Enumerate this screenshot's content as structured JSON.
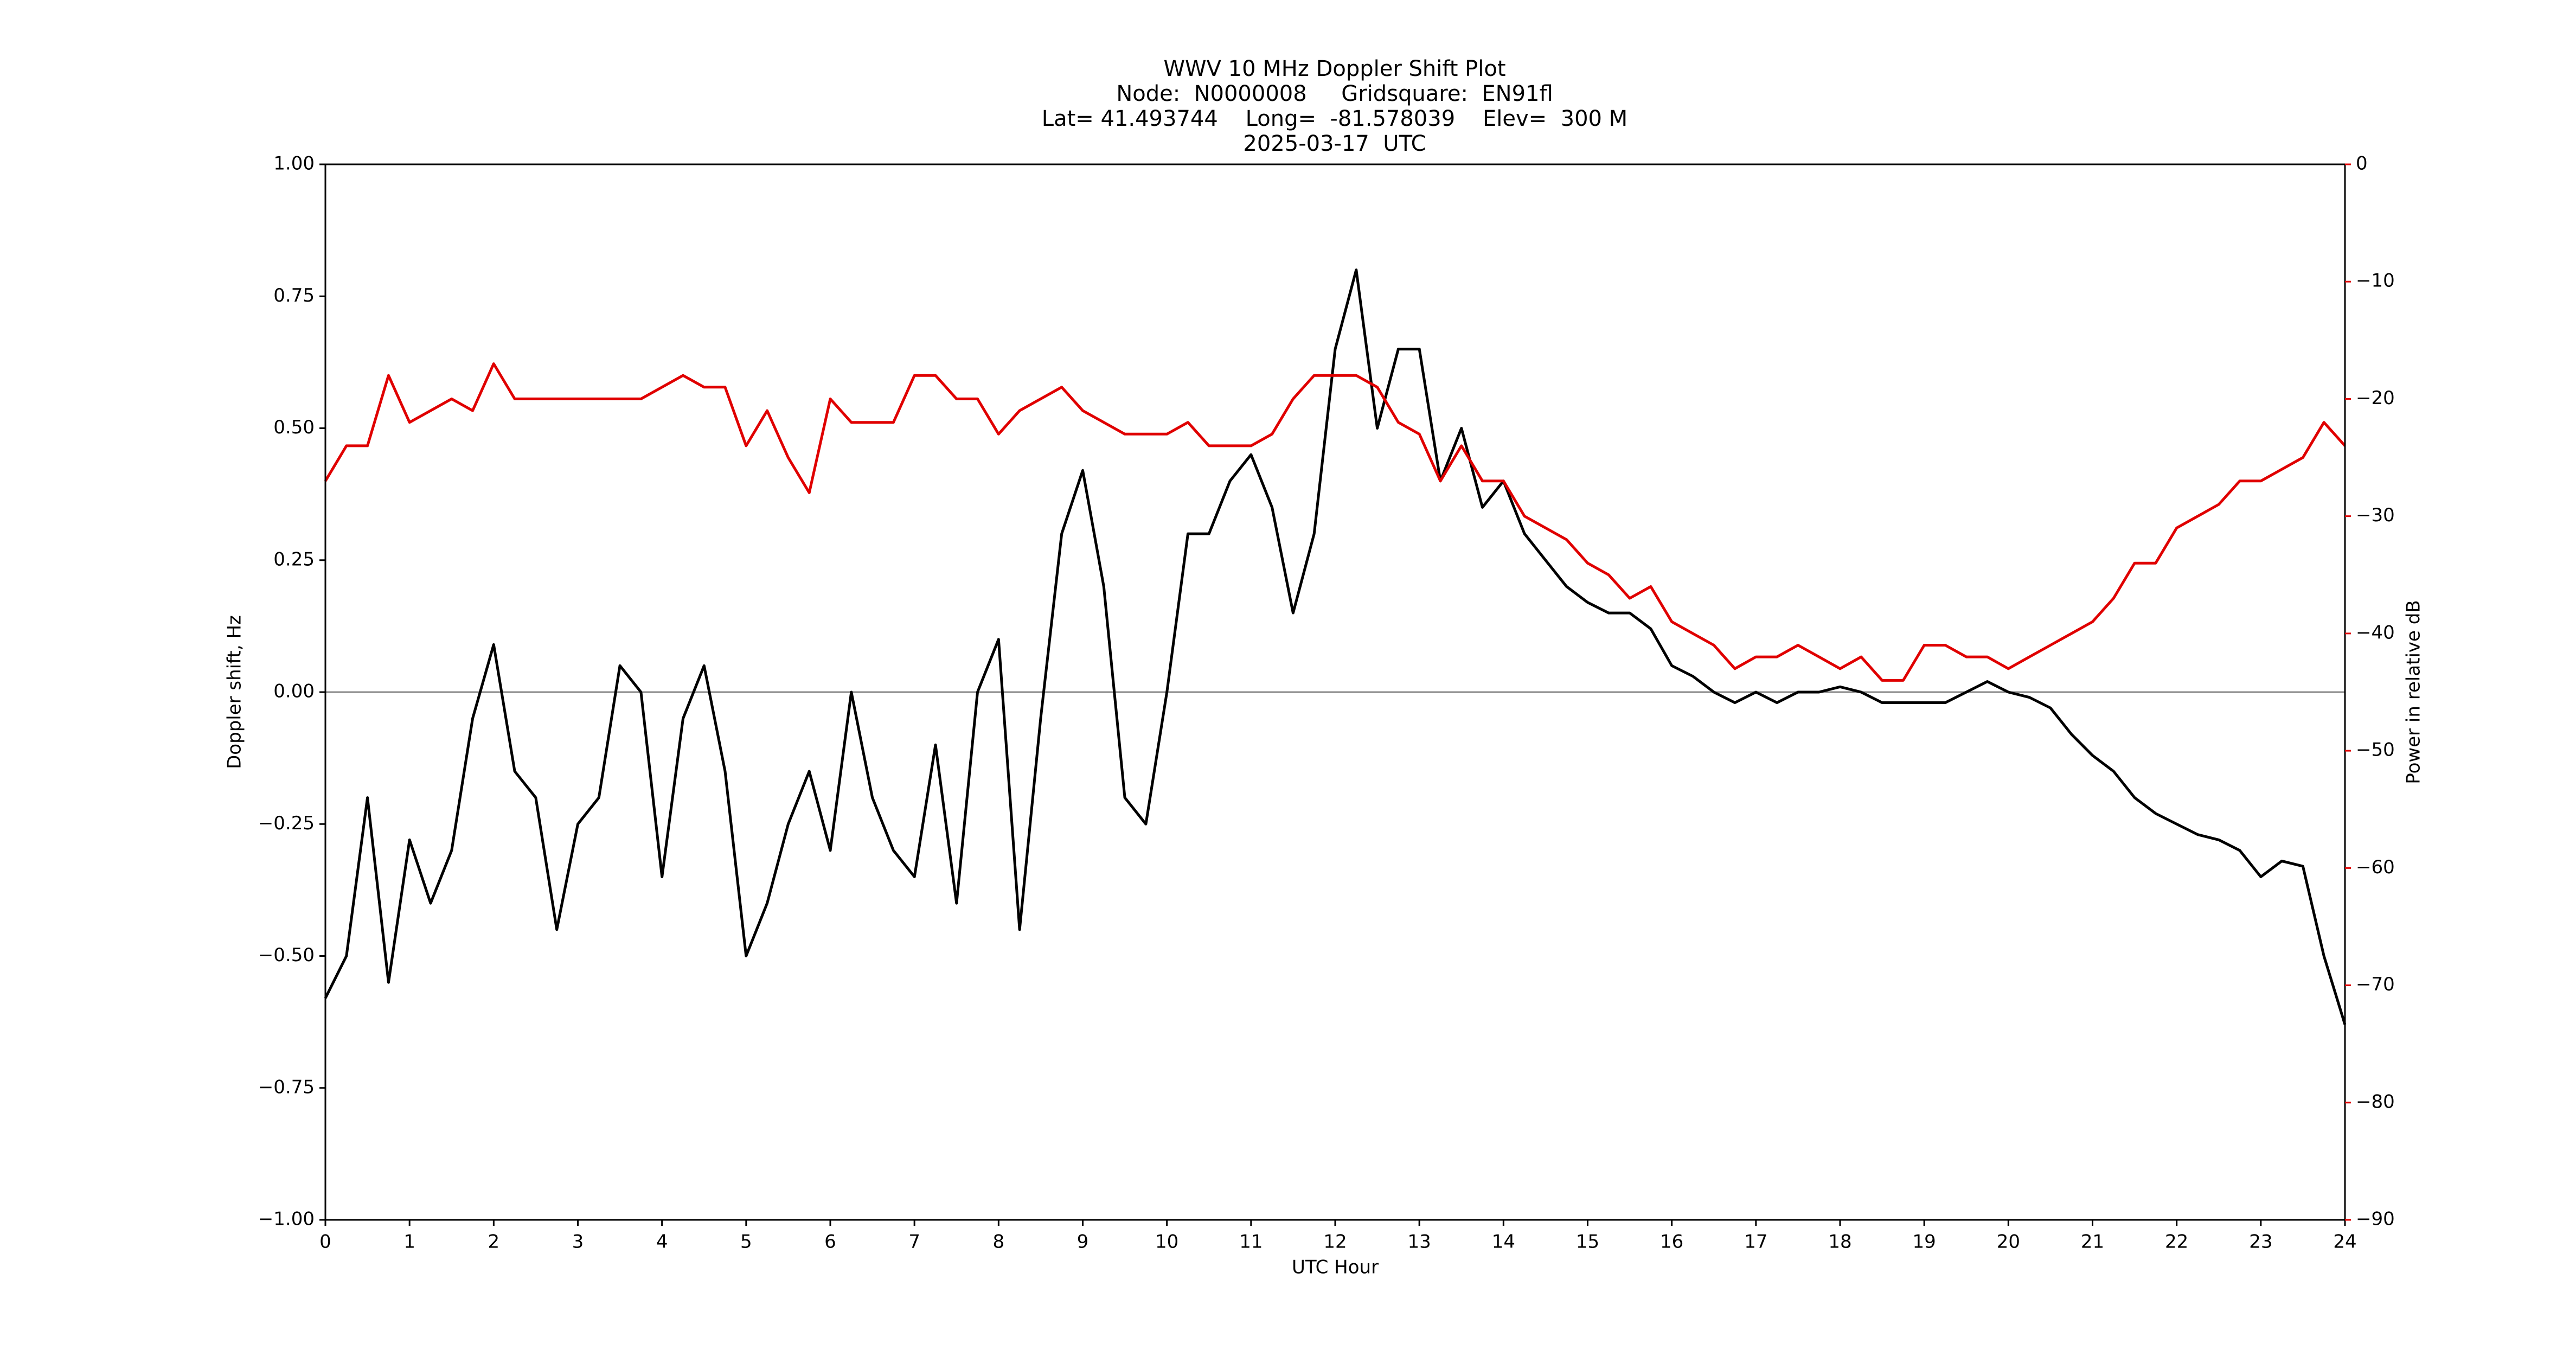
{
  "chart_data": {
    "type": "line",
    "title": "WWV 10 MHz Doppler Shift Plot",
    "subtitle": [
      "Node:  N0000008     Gridsquare:  EN91fl",
      "Lat= 41.493744    Long=  -81.578039    Elev=  300 M",
      "2025-03-17  UTC"
    ],
    "xlabel": "UTC Hour",
    "ylabel": "Doppler shift, Hz",
    "y2label": "Power in relative dB",
    "xlim": [
      0,
      24
    ],
    "xticks": [
      0,
      1,
      2,
      3,
      4,
      5,
      6,
      7,
      8,
      9,
      10,
      11,
      12,
      13,
      14,
      15,
      16,
      17,
      18,
      19,
      20,
      21,
      22,
      23,
      24
    ],
    "ylim": [
      -1,
      1
    ],
    "yticks": [
      {
        "value": -1,
        "label": "−1.00"
      },
      {
        "value": -0.75,
        "label": "−0.75"
      },
      {
        "value": -0.5,
        "label": "−0.50"
      },
      {
        "value": -0.25,
        "label": "−0.25"
      },
      {
        "value": 0,
        "label": "0.00"
      },
      0.25,
      {
        "value": 0.5,
        "label": "0.50"
      },
      0.75,
      {
        "value": 1,
        "label": "1.00"
      }
    ],
    "y2lim": [
      -90,
      0
    ],
    "y2ticks": [
      {
        "value": -90,
        "label": "−90"
      },
      {
        "value": -80,
        "label": "−80"
      },
      {
        "value": -70,
        "label": "−70"
      },
      {
        "value": -60,
        "label": "−60"
      },
      {
        "value": -50,
        "label": "−50"
      },
      {
        "value": -40,
        "label": "−40"
      },
      {
        "value": -30,
        "label": "−30"
      },
      {
        "value": -20,
        "label": "−20"
      },
      {
        "value": -10,
        "label": "−10"
      },
      0
    ],
    "y2color": "#e00000",
    "reference_line": 0,
    "x": [
      0,
      0.25,
      0.5,
      0.75,
      1,
      1.25,
      1.5,
      1.75,
      2,
      2.25,
      2.5,
      2.75,
      3,
      3.25,
      3.5,
      3.75,
      4,
      4.25,
      4.5,
      4.75,
      5,
      5.25,
      5.5,
      5.75,
      6,
      6.25,
      6.5,
      6.75,
      7,
      7.25,
      7.5,
      7.75,
      8,
      8.25,
      8.5,
      8.75,
      9,
      9.25,
      9.5,
      9.75,
      10,
      10.25,
      10.5,
      10.75,
      11,
      11.25,
      11.5,
      11.75,
      12,
      12.25,
      12.5,
      12.75,
      13,
      13.25,
      13.5,
      13.75,
      14,
      14.25,
      14.5,
      14.75,
      15,
      15.25,
      15.5,
      15.75,
      16,
      16.25,
      16.5,
      16.75,
      17,
      17.25,
      17.5,
      17.75,
      18,
      18.25,
      18.5,
      18.75,
      19,
      19.25,
      19.5,
      19.75,
      20,
      20.25,
      20.5,
      20.75,
      21,
      21.25,
      21.5,
      21.75,
      22,
      22.25,
      22.5,
      22.75,
      23,
      23.25,
      23.5,
      23.75,
      24
    ],
    "series": [
      {
        "color": "#000000",
        "values": [
          -0.58,
          -0.5,
          -0.2,
          -0.55,
          -0.28,
          -0.4,
          -0.3,
          -0.05,
          0.09,
          -0.15,
          -0.2,
          -0.45,
          -0.25,
          -0.2,
          0.05,
          0,
          -0.35,
          -0.05,
          0.05,
          -0.15,
          -0.5,
          -0.4,
          -0.25,
          -0.15,
          -0.3,
          0,
          -0.2,
          -0.3,
          -0.35,
          -0.1,
          -0.4,
          0,
          0.1,
          -0.45,
          -0.05,
          0.3,
          0.42,
          0.2,
          -0.2,
          -0.25,
          0,
          0.3,
          0.3,
          0.4,
          0.45,
          0.35,
          0.15,
          0.3,
          0.65,
          0.8,
          0.5,
          0.65,
          0.65,
          0.4,
          0.5,
          0.35,
          0.4,
          0.3,
          0.25,
          0.2,
          0.17,
          0.15,
          0.15,
          0.12,
          0.05,
          0.03,
          0,
          -0.02,
          0,
          -0.02,
          0,
          0,
          0.01,
          0,
          -0.02,
          -0.02,
          -0.02,
          -0.02,
          0,
          0.02,
          0,
          -0.01,
          -0.03,
          -0.08,
          -0.12,
          -0.15,
          -0.2,
          -0.23,
          -0.25,
          -0.27,
          -0.28,
          -0.3,
          -0.35,
          -0.32,
          -0.33,
          -0.5,
          -0.63
        ]
      },
      {
        "color": "#e00000",
        "axis": "y2",
        "values": [
          -27,
          -24,
          -24,
          -18,
          -22,
          -21,
          -20,
          -21,
          -17,
          -20,
          -20,
          -20,
          -20,
          -20,
          -20,
          -20,
          -19,
          -18,
          -19,
          -19,
          -24,
          -21,
          -25,
          -28,
          -20,
          -22,
          -22,
          -22,
          -18,
          -18,
          -20,
          -20,
          -23,
          -21,
          -20,
          -19,
          -21,
          -22,
          -23,
          -23,
          -23,
          -22,
          -24,
          -24,
          -24,
          -23,
          -20,
          -18,
          -18,
          -18,
          -19,
          -22,
          -23,
          -27,
          -24,
          -27,
          -27,
          -30,
          -31,
          -32,
          -34,
          -35,
          -37,
          -36,
          -39,
          -40,
          -41,
          -43,
          -42,
          -42,
          -41,
          -42,
          -43,
          -42,
          -44,
          -44,
          -41,
          -41,
          -42,
          -42,
          -43,
          -42,
          -41,
          -40,
          -39,
          -37,
          -34,
          -34,
          -31,
          -30,
          -29,
          -27,
          -27,
          -26,
          -25,
          -22,
          -24
        ]
      }
    ]
  }
}
